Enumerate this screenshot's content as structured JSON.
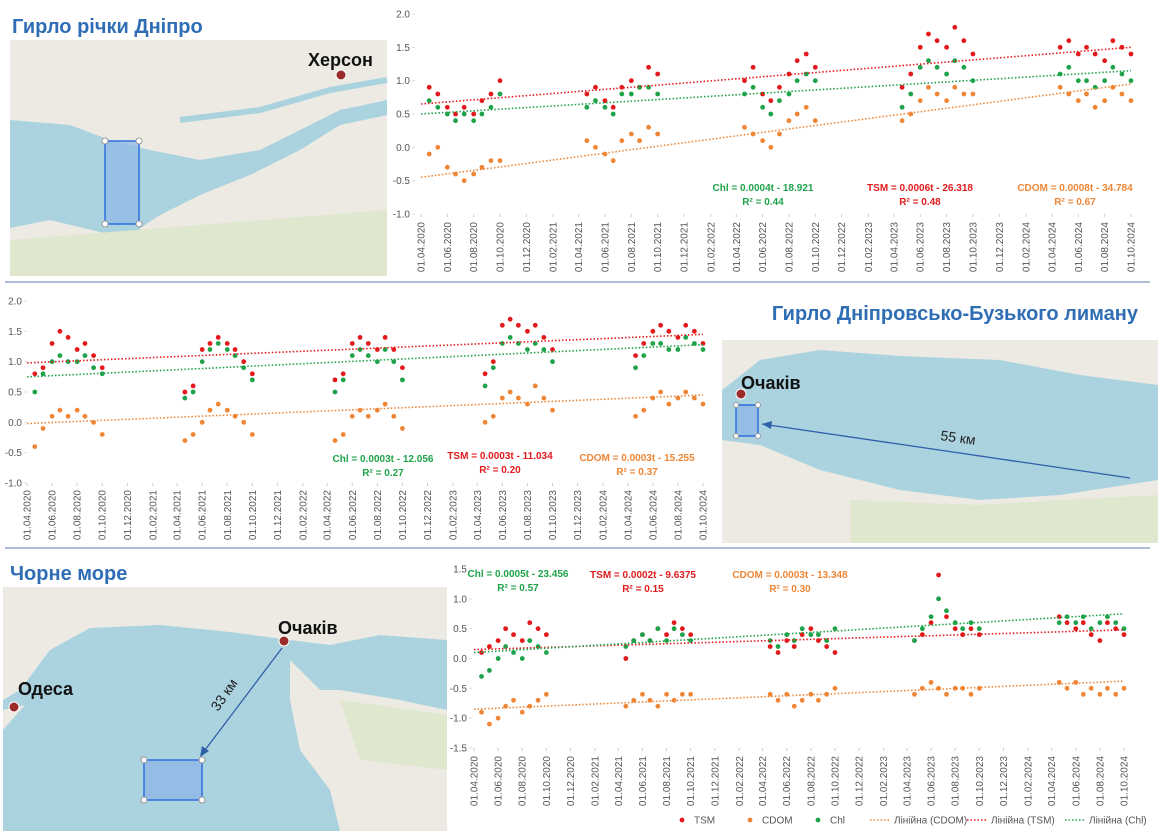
{
  "section_titles": [
    "Гирло річки Дніпро",
    "Гирло Дніпровсько-Бузького лиману",
    "Чорне море"
  ],
  "map_labels": {
    "kherson": "Херсон",
    "ochakiv_1": "Очаків",
    "distance_1": "55 км",
    "ochakiv_2": "Очаків",
    "odesa": "Одеса",
    "distance_2": "33 км"
  },
  "chart_data": [
    {
      "type": "scatter",
      "x": [
        "20.04.2020",
        "10.05.2020",
        "01.06.2020",
        "20.06.2020",
        "10.07.2020",
        "01.08.2020",
        "20.08.2020",
        "10.09.2020",
        "01.10.2020",
        "20.04.2021",
        "10.05.2021",
        "01.06.2021",
        "20.06.2021",
        "10.07.2021",
        "01.08.2021",
        "20.08.2021",
        "10.09.2021",
        "01.10.2021",
        "20.04.2022",
        "10.05.2022",
        "01.06.2022",
        "20.06.2022",
        "10.07.2022",
        "01.08.2022",
        "20.08.2022",
        "10.09.2022",
        "01.10.2022",
        "20.04.2023",
        "10.05.2023",
        "01.06.2023",
        "20.06.2023",
        "10.07.2023",
        "01.08.2023",
        "20.08.2023",
        "10.09.2023",
        "01.10.2023",
        "20.04.2024",
        "10.05.2024",
        "01.06.2024",
        "20.06.2024",
        "10.07.2024",
        "01.08.2024",
        "20.08.2024",
        "10.09.2024",
        "01.10.2024"
      ],
      "xlim": [
        "01.04.2020",
        "01.10.2024"
      ],
      "xticks": [
        "01.04.2020",
        "01.06.2020",
        "01.08.2020",
        "01.10.2020",
        "01.12.2020",
        "01.02.2021",
        "01.04.2021",
        "01.06.2021",
        "01.08.2021",
        "01.10.2021",
        "01.12.2021",
        "01.02.2022",
        "01.04.2022",
        "01.06.2022",
        "01.08.2022",
        "01.10.2022",
        "01.12.2022",
        "01.02.2023",
        "01.04.2023",
        "01.06.2023",
        "01.08.2023",
        "01.10.2023",
        "01.12.2023",
        "01.02.2024",
        "01.04.2024",
        "01.06.2024",
        "01.08.2024",
        "01.10.2024"
      ],
      "ylim": [
        -1,
        2
      ],
      "yticks": [
        {
          "value": 2,
          "label": "2.0"
        },
        {
          "value": 1.5,
          "label": "1.5"
        },
        {
          "value": 1,
          "label": "1.0"
        },
        {
          "value": 0.5,
          "label": "0.5"
        },
        {
          "value": 0,
          "label": "0.0"
        },
        {
          "value": -0.5,
          "label": "-0.5"
        },
        {
          "value": -1,
          "label": "-1.0"
        }
      ],
      "series": [
        {
          "name": "TSM",
          "color": "#e31a1c",
          "values": [
            0.9,
            0.8,
            0.6,
            0.5,
            0.6,
            0.5,
            0.7,
            0.8,
            1.0,
            0.8,
            0.9,
            0.7,
            0.6,
            0.9,
            1.0,
            0.9,
            1.2,
            1.1,
            1.0,
            1.2,
            0.8,
            0.7,
            0.9,
            1.1,
            1.3,
            1.4,
            1.2,
            0.9,
            1.1,
            1.5,
            1.7,
            1.6,
            1.5,
            1.8,
            1.6,
            1.4,
            1.5,
            1.6,
            1.4,
            1.5,
            1.4,
            1.3,
            1.6,
            1.5,
            1.4
          ]
        },
        {
          "name": "CDOM",
          "color": "#ef8636",
          "values": [
            -0.1,
            0.0,
            -0.3,
            -0.4,
            -0.5,
            -0.4,
            -0.3,
            -0.2,
            -0.2,
            0.1,
            0.0,
            -0.1,
            -0.2,
            0.1,
            0.2,
            0.1,
            0.3,
            0.2,
            0.3,
            0.2,
            0.1,
            0.0,
            0.2,
            0.4,
            0.5,
            0.6,
            0.4,
            0.4,
            0.5,
            0.7,
            0.9,
            0.8,
            0.7,
            0.9,
            0.8,
            0.8,
            0.9,
            0.8,
            0.7,
            0.8,
            0.6,
            0.7,
            0.9,
            0.8,
            0.7
          ]
        },
        {
          "name": "Chl",
          "color": "#1fa34a",
          "values": [
            0.7,
            0.6,
            0.5,
            0.4,
            0.5,
            0.4,
            0.5,
            0.6,
            0.8,
            0.6,
            0.7,
            0.6,
            0.5,
            0.8,
            0.8,
            0.9,
            0.9,
            0.8,
            0.8,
            0.9,
            0.6,
            0.5,
            0.7,
            0.8,
            1.0,
            1.1,
            1.0,
            0.6,
            0.8,
            1.2,
            1.3,
            1.2,
            1.1,
            1.3,
            1.2,
            1.0,
            1.1,
            1.2,
            1.0,
            1.0,
            0.9,
            1.0,
            1.2,
            1.1,
            1.0
          ]
        }
      ],
      "trendlines": [
        {
          "color": "#1fa34a",
          "values": [
            0.5,
            1.15
          ],
          "equation": "Chl = 0.0004t - 18.921",
          "r2": "R² = 0.44"
        },
        {
          "color": "#e31a1c",
          "values": [
            0.65,
            1.5
          ],
          "equation": "TSM = 0.0006t - 26.318",
          "r2": "R² = 0.48"
        },
        {
          "color": "#ef8636",
          "values": [
            -0.45,
            0.95
          ],
          "equation": "CDOM = 0.0008t - 34.784",
          "r2": "R² = 0.67"
        }
      ]
    },
    {
      "type": "scatter",
      "x": [
        "20.04.2020",
        "10.05.2020",
        "01.06.2020",
        "20.06.2020",
        "10.07.2020",
        "01.08.2020",
        "20.08.2020",
        "10.09.2020",
        "01.10.2020",
        "20.04.2021",
        "10.05.2021",
        "01.06.2021",
        "20.06.2021",
        "10.07.2021",
        "01.08.2021",
        "20.08.2021",
        "10.09.2021",
        "01.10.2021",
        "20.04.2022",
        "10.05.2022",
        "01.06.2022",
        "20.06.2022",
        "10.07.2022",
        "01.08.2022",
        "20.08.2022",
        "10.09.2022",
        "01.10.2022",
        "20.04.2023",
        "10.05.2023",
        "01.06.2023",
        "20.06.2023",
        "10.07.2023",
        "01.08.2023",
        "20.08.2023",
        "10.09.2023",
        "01.10.2023",
        "20.04.2024",
        "10.05.2024",
        "01.06.2024",
        "20.06.2024",
        "10.07.2024",
        "01.08.2024",
        "20.08.2024",
        "10.09.2024",
        "01.10.2024"
      ],
      "xlim": [
        "01.04.2020",
        "01.10.2024"
      ],
      "xticks": [
        "01.04.2020",
        "01.06.2020",
        "01.08.2020",
        "01.10.2020",
        "01.12.2020",
        "01.02.2021",
        "01.04.2021",
        "01.06.2021",
        "01.08.2021",
        "01.10.2021",
        "01.12.2021",
        "01.02.2022",
        "01.04.2022",
        "01.06.2022",
        "01.08.2022",
        "01.10.2022",
        "01.12.2022",
        "01.02.2023",
        "01.04.2023",
        "01.06.2023",
        "01.08.2023",
        "01.10.2023",
        "01.12.2023",
        "01.02.2024",
        "01.04.2024",
        "01.06.2024",
        "01.08.2024",
        "01.10.2024"
      ],
      "ylim": [
        -1,
        2
      ],
      "yticks": [
        {
          "value": 2,
          "label": "2.0"
        },
        {
          "value": 1.5,
          "label": "1.5"
        },
        {
          "value": 1,
          "label": "1.0"
        },
        {
          "value": 0.5,
          "label": "0.5"
        },
        {
          "value": 0,
          "label": "0.0"
        },
        {
          "value": -0.5,
          "label": "-0.5"
        },
        {
          "value": -1,
          "label": "-1.0"
        }
      ],
      "series": [
        {
          "name": "TSM",
          "color": "#e31a1c",
          "values": [
            0.8,
            0.9,
            1.3,
            1.5,
            1.4,
            1.2,
            1.3,
            1.1,
            0.9,
            0.5,
            0.6,
            1.2,
            1.3,
            1.4,
            1.3,
            1.2,
            1.0,
            0.8,
            0.7,
            0.8,
            1.3,
            1.4,
            1.3,
            1.2,
            1.4,
            1.2,
            0.9,
            0.8,
            1.0,
            1.6,
            1.7,
            1.6,
            1.5,
            1.6,
            1.4,
            1.2,
            1.1,
            1.3,
            1.5,
            1.6,
            1.5,
            1.4,
            1.6,
            1.5,
            1.3
          ]
        },
        {
          "name": "CDOM",
          "color": "#ef8636",
          "values": [
            -0.4,
            -0.1,
            0.1,
            0.2,
            0.1,
            0.2,
            0.1,
            0.0,
            -0.2,
            -0.3,
            -0.2,
            0.0,
            0.2,
            0.3,
            0.2,
            0.1,
            0.0,
            -0.2,
            -0.3,
            -0.2,
            0.1,
            0.2,
            0.1,
            0.2,
            0.3,
            0.1,
            -0.1,
            0.0,
            0.1,
            0.4,
            0.5,
            0.4,
            0.3,
            0.6,
            0.4,
            0.2,
            0.1,
            0.2,
            0.4,
            0.5,
            0.3,
            0.4,
            0.5,
            0.4,
            0.3
          ]
        },
        {
          "name": "Chl",
          "color": "#1fa34a",
          "values": [
            0.5,
            0.8,
            1.0,
            1.1,
            1.0,
            1.0,
            1.1,
            0.9,
            0.8,
            0.4,
            0.5,
            1.0,
            1.2,
            1.3,
            1.2,
            1.1,
            0.9,
            0.7,
            0.5,
            0.7,
            1.1,
            1.2,
            1.1,
            1.0,
            1.2,
            1.0,
            0.7,
            0.6,
            0.9,
            1.3,
            1.4,
            1.3,
            1.2,
            1.3,
            1.2,
            1.0,
            0.9,
            1.1,
            1.3,
            1.3,
            1.2,
            1.2,
            1.4,
            1.3,
            1.2
          ]
        }
      ],
      "trendlines": [
        {
          "color": "#1fa34a",
          "values": [
            0.75,
            1.28
          ],
          "equation": "Chl = 0.0003t - 12.056",
          "r2": "R² = 0.27"
        },
        {
          "color": "#e31a1c",
          "values": [
            0.98,
            1.45
          ],
          "equation": "TSM = 0.0003t - 11.034",
          "r2": "R² = 0.20"
        },
        {
          "color": "#ef8636",
          "values": [
            -0.02,
            0.45
          ],
          "equation": "CDOM = 0.0003t - 15.255",
          "r2": "R² = 0.37"
        }
      ]
    },
    {
      "type": "scatter",
      "x": [
        "20.04.2020",
        "10.05.2020",
        "01.06.2020",
        "20.06.2020",
        "10.07.2020",
        "01.08.2020",
        "20.08.2020",
        "10.09.2020",
        "01.10.2020",
        "20.04.2021",
        "10.05.2021",
        "01.06.2021",
        "20.06.2021",
        "10.07.2021",
        "01.08.2021",
        "20.08.2021",
        "10.09.2021",
        "01.10.2021",
        "20.04.2022",
        "10.05.2022",
        "01.06.2022",
        "20.06.2022",
        "10.07.2022",
        "01.08.2022",
        "20.08.2022",
        "10.09.2022",
        "01.10.2022",
        "20.04.2023",
        "10.05.2023",
        "01.06.2023",
        "20.06.2023",
        "10.07.2023",
        "01.08.2023",
        "20.08.2023",
        "10.09.2023",
        "01.10.2023",
        "20.04.2024",
        "10.05.2024",
        "01.06.2024",
        "20.06.2024",
        "10.07.2024",
        "01.08.2024",
        "20.08.2024",
        "10.09.2024",
        "01.10.2024"
      ],
      "xlim": [
        "01.04.2020",
        "01.10.2024"
      ],
      "xticks": [
        "01.04.2020",
        "01.06.2020",
        "01.08.2020",
        "01.10.2020",
        "01.12.2020",
        "01.02.2021",
        "01.04.2021",
        "01.06.2021",
        "01.08.2021",
        "01.10.2021",
        "01.12.2021",
        "01.02.2022",
        "01.04.2022",
        "01.06.2022",
        "01.08.2022",
        "01.10.2022",
        "01.12.2022",
        "01.02.2023",
        "01.04.2023",
        "01.06.2023",
        "01.08.2023",
        "01.10.2023",
        "01.12.2023",
        "01.02.2024",
        "01.04.2024",
        "01.06.2024",
        "01.08.2024",
        "01.10.2024"
      ],
      "ylim": [
        -1.5,
        1.5
      ],
      "yticks": [
        {
          "value": 1.5,
          "label": "1.5"
        },
        {
          "value": 1,
          "label": "1.0"
        },
        {
          "value": 0.5,
          "label": "0.5"
        },
        {
          "value": 0,
          "label": "0.0"
        },
        {
          "value": -0.5,
          "label": "-0.5"
        },
        {
          "value": -1,
          "label": "-1.0"
        },
        {
          "value": -1.5,
          "label": "-1.5"
        }
      ],
      "legend": true,
      "series": [
        {
          "name": "TSM",
          "color": "#e31a1c",
          "values": [
            0.1,
            0.2,
            0.3,
            0.5,
            0.4,
            0.3,
            0.6,
            0.5,
            0.4,
            0.0,
            0.3,
            0.4,
            0.3,
            0.5,
            0.4,
            0.6,
            0.5,
            0.4,
            0.2,
            0.1,
            0.3,
            0.2,
            0.4,
            0.5,
            0.3,
            0.2,
            0.1,
            0.3,
            0.4,
            0.6,
            1.4,
            0.7,
            0.5,
            0.4,
            0.5,
            0.4,
            0.7,
            0.6,
            0.5,
            0.6,
            0.4,
            0.3,
            0.6,
            0.5,
            0.4
          ]
        },
        {
          "name": "CDOM",
          "color": "#ef8636",
          "values": [
            -0.9,
            -1.1,
            -1.0,
            -0.8,
            -0.7,
            -0.9,
            -0.8,
            -0.7,
            -0.6,
            -0.8,
            -0.7,
            -0.6,
            -0.7,
            -0.8,
            -0.6,
            -0.7,
            -0.6,
            -0.6,
            -0.6,
            -0.7,
            -0.6,
            -0.8,
            -0.7,
            -0.6,
            -0.7,
            -0.6,
            -0.5,
            -0.6,
            -0.5,
            -0.4,
            -0.5,
            -0.6,
            -0.5,
            -0.5,
            -0.6,
            -0.5,
            -0.4,
            -0.5,
            -0.4,
            -0.6,
            -0.5,
            -0.6,
            -0.5,
            -0.6,
            -0.5
          ]
        },
        {
          "name": "Chl",
          "color": "#1fa34a",
          "values": [
            -0.3,
            -0.2,
            0.0,
            0.2,
            0.1,
            0.0,
            0.3,
            0.2,
            0.1,
            0.2,
            0.3,
            0.4,
            0.3,
            0.5,
            0.3,
            0.5,
            0.4,
            0.3,
            0.3,
            0.2,
            0.4,
            0.3,
            0.5,
            0.4,
            0.4,
            0.3,
            0.5,
            0.3,
            0.5,
            0.7,
            1.0,
            0.8,
            0.6,
            0.5,
            0.6,
            0.5,
            0.6,
            0.7,
            0.6,
            0.7,
            0.5,
            0.6,
            0.7,
            0.6,
            0.5
          ]
        }
      ],
      "trendlines": [
        {
          "name": "Лінійна (CDOM)",
          "color": "#ef8636",
          "values": [
            -0.85,
            -0.38
          ],
          "equation": "CDOM = 0.0003t - 13.348",
          "r2": "R² = 0.30"
        },
        {
          "name": "Лінійна (TSM)",
          "color": "#e31a1c",
          "values": [
            0.15,
            0.48
          ],
          "equation": "TSM = 0.0002t - 9.6375",
          "r2": "R² = 0.15"
        },
        {
          "name": "Лінійна (Chl)",
          "color": "#1fa34a",
          "values": [
            0.1,
            0.75
          ],
          "equation": "Chl = 0.0005t - 23.456",
          "r2": "R² = 0.57"
        }
      ]
    }
  ]
}
